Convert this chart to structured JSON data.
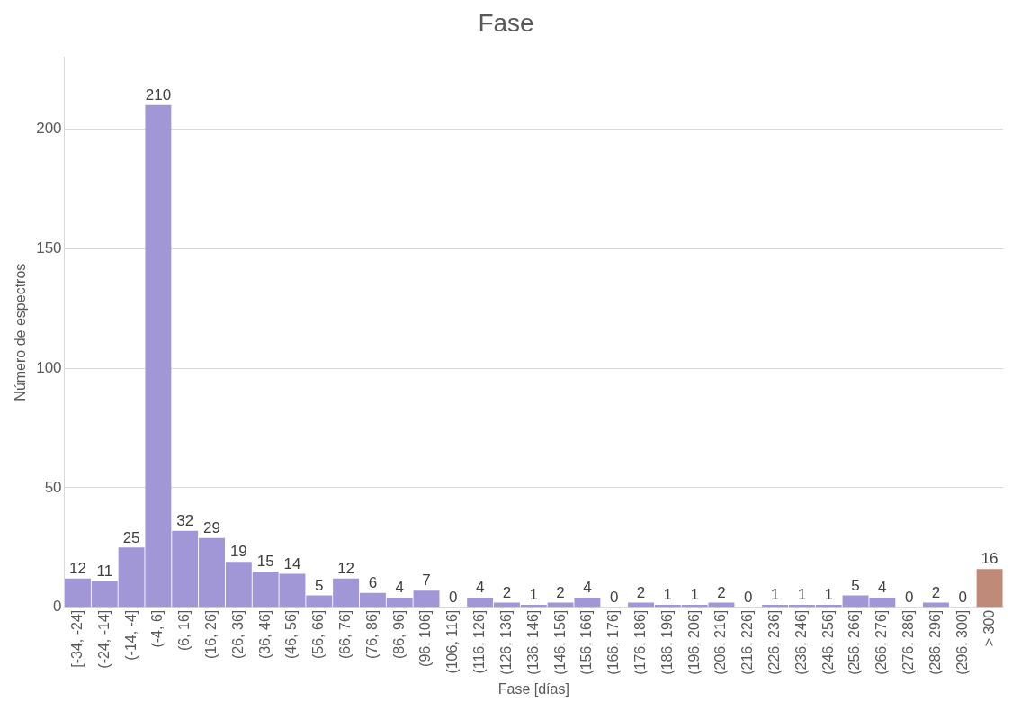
{
  "chart_data": {
    "type": "bar",
    "title": "Fase",
    "xlabel": "Fase [días]",
    "ylabel": "Número de espectros",
    "categories": [
      "[-34, -24]",
      "(-24, -14]",
      "(-14, -4]",
      "(-4, 6]",
      "(6, 16]",
      "(16, 26]",
      "(26, 36]",
      "(36, 46]",
      "(46, 56]",
      "(56, 66]",
      "(66, 76]",
      "(76, 86]",
      "(86, 96]",
      "(96, 106]",
      "(106, 116]",
      "(116, 126]",
      "(126, 136]",
      "(136, 146]",
      "(146, 156]",
      "(156, 166]",
      "(166, 176]",
      "(176, 186]",
      "(186, 196]",
      "(196, 206]",
      "(206, 216]",
      "(216, 226]",
      "(226, 236]",
      "(236, 246]",
      "(246, 256]",
      "(256, 266]",
      "(266, 276]",
      "(276, 286]",
      "(286, 296]",
      "(296, 300]",
      "> 300"
    ],
    "values": [
      12,
      11,
      25,
      210,
      32,
      29,
      19,
      15,
      14,
      5,
      12,
      6,
      4,
      7,
      0,
      4,
      2,
      1,
      2,
      4,
      0,
      2,
      1,
      1,
      2,
      0,
      1,
      1,
      1,
      5,
      4,
      0,
      2,
      0,
      16
    ],
    "colors": [
      "#a197d6",
      "#a197d6",
      "#a197d6",
      "#a197d6",
      "#a197d6",
      "#a197d6",
      "#a197d6",
      "#a197d6",
      "#a197d6",
      "#a197d6",
      "#a197d6",
      "#a197d6",
      "#a197d6",
      "#a197d6",
      "#a197d6",
      "#a197d6",
      "#a197d6",
      "#a197d6",
      "#a197d6",
      "#a197d6",
      "#a197d6",
      "#a197d6",
      "#a197d6",
      "#a197d6",
      "#a197d6",
      "#a197d6",
      "#a197d6",
      "#a197d6",
      "#a197d6",
      "#a197d6",
      "#a197d6",
      "#a197d6",
      "#a197d6",
      "#a197d6",
      "#c08a78"
    ],
    "ylim": [
      0,
      230
    ],
    "yticks": [
      0,
      50,
      100,
      150,
      200
    ],
    "grid": "y",
    "legend": false,
    "data_labels": true
  }
}
